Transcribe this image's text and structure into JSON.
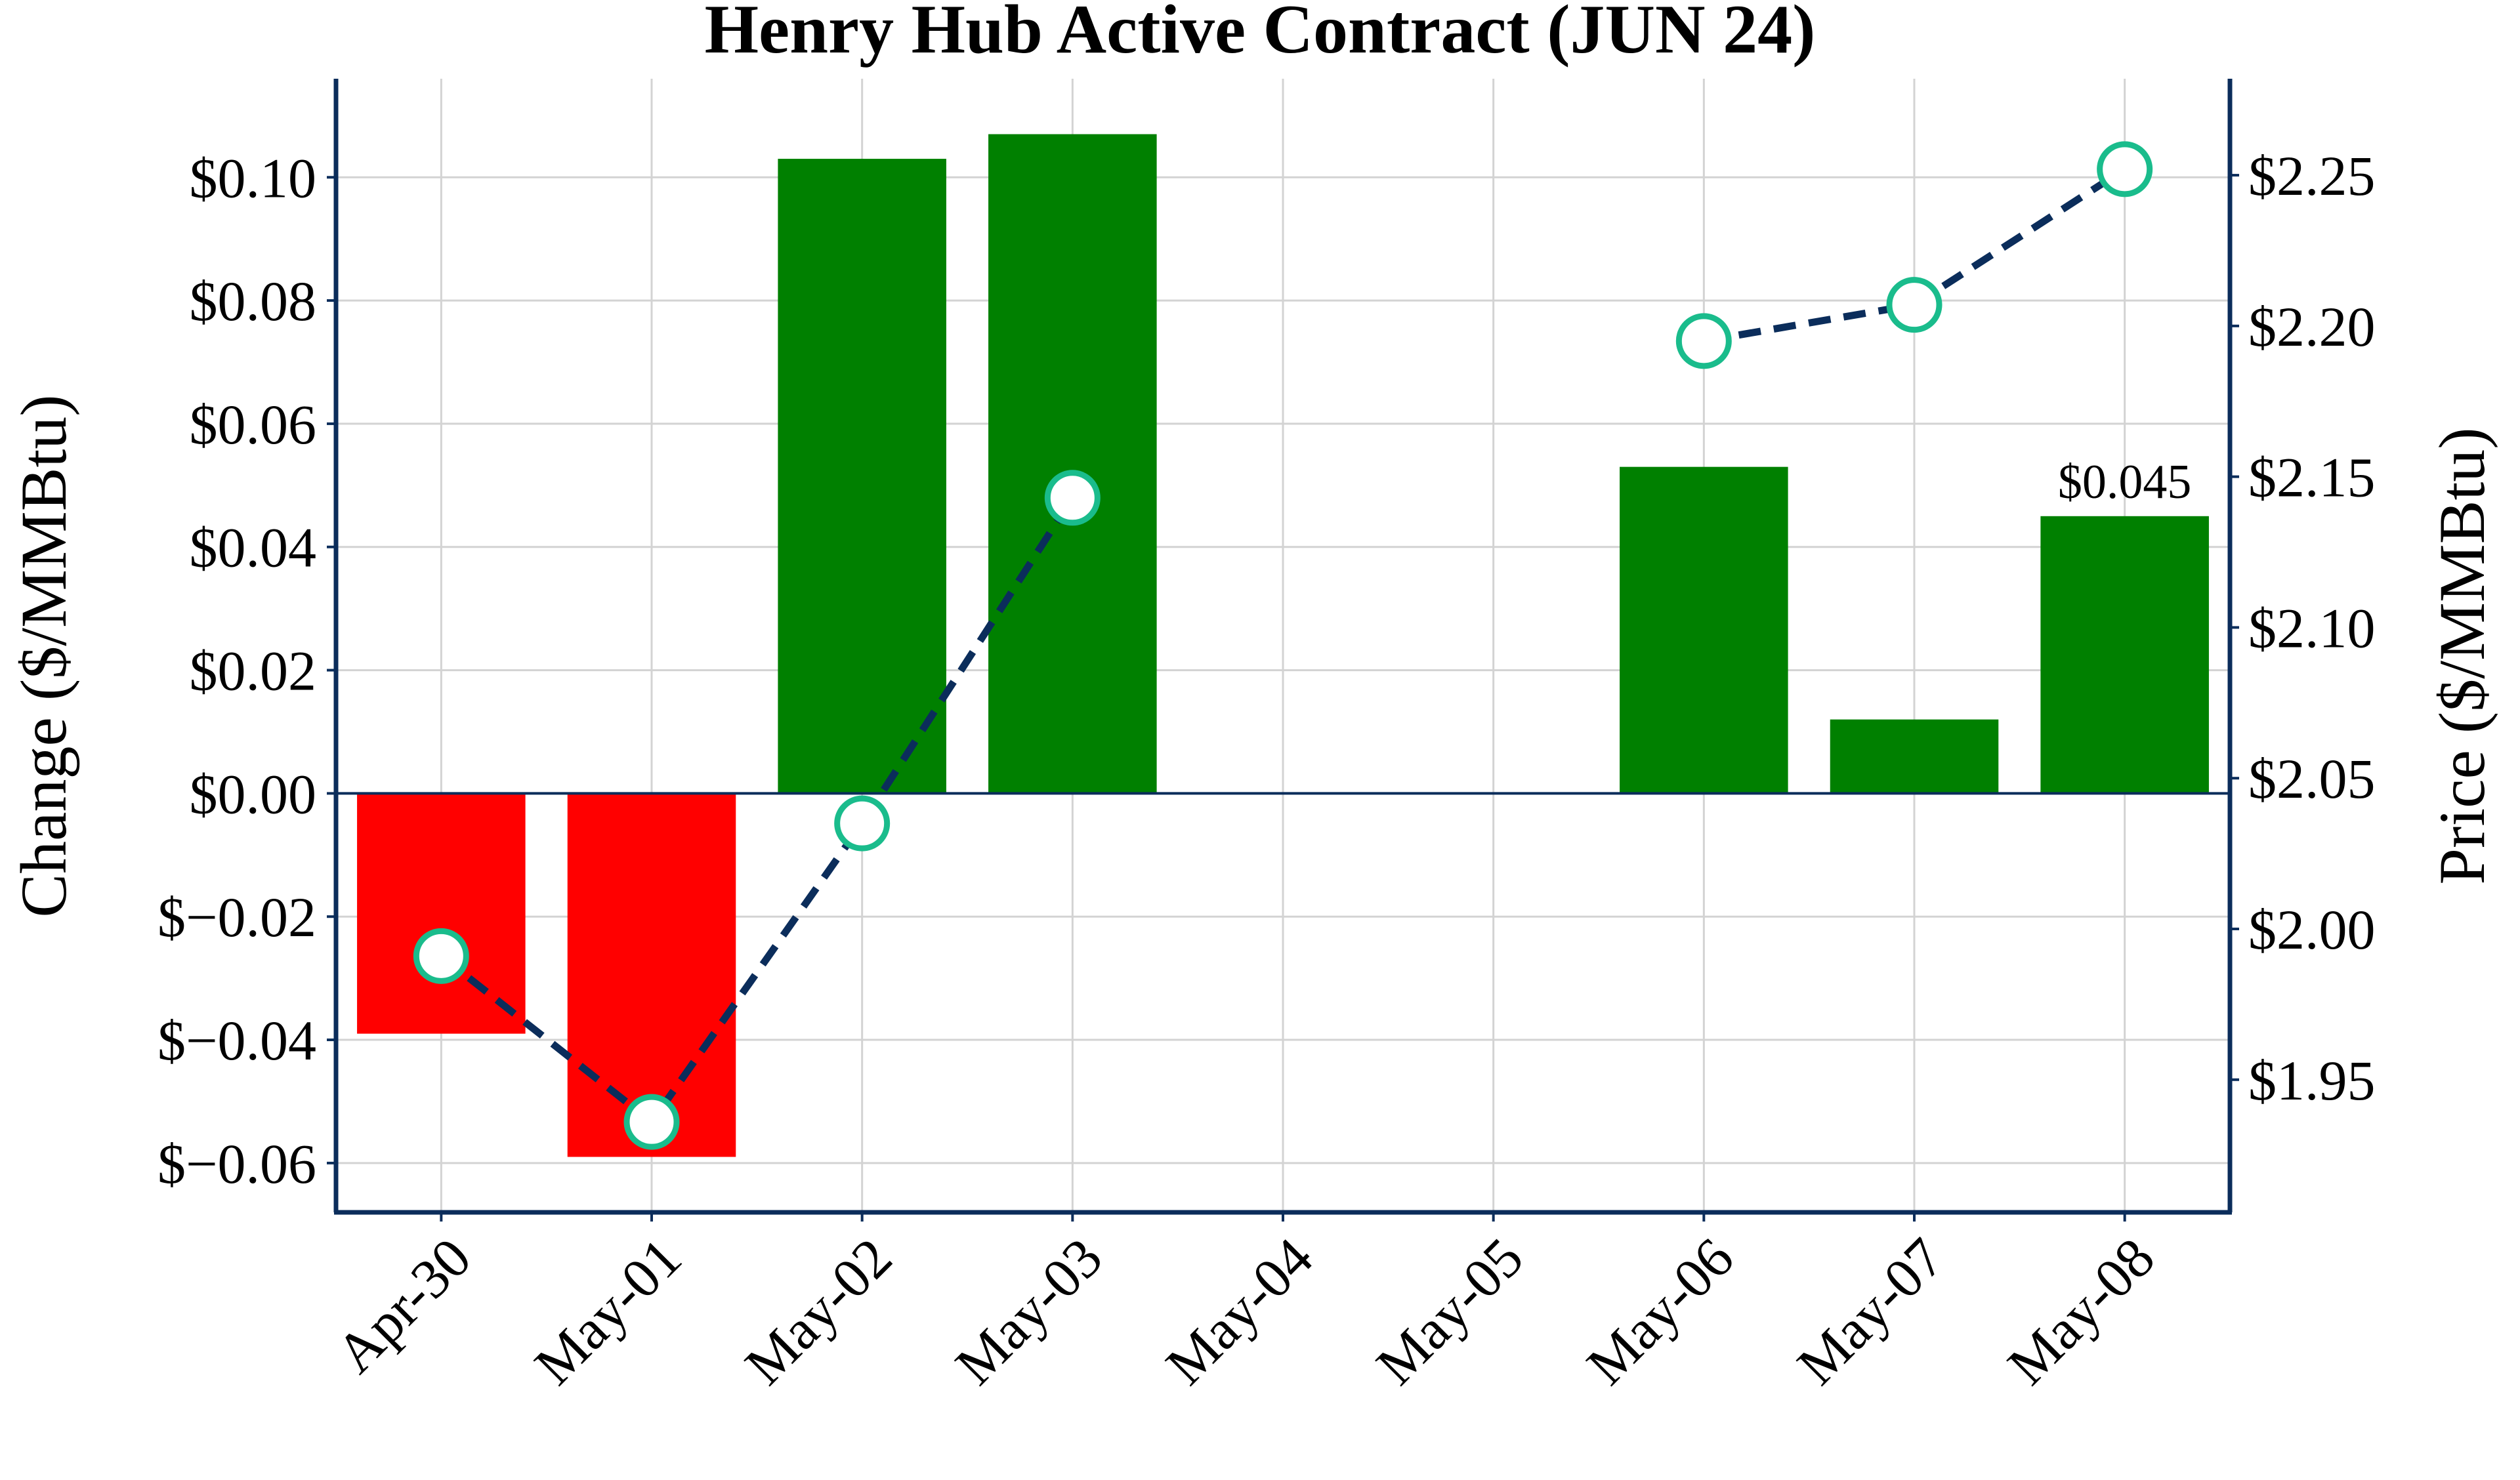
{
  "chart_data": {
    "type": "bar",
    "title": "Henry Hub Active Contract (JUN 24)",
    "categories": [
      "Apr-30",
      "May-01",
      "May-02",
      "May-03",
      "May-04",
      "May-05",
      "May-06",
      "May-07",
      "May-08"
    ],
    "left_axis": {
      "label": "Change ($/MMBtu)",
      "ylim": [
        -0.068,
        0.116
      ],
      "ticks": [
        -0.06,
        -0.04,
        -0.02,
        0.0,
        0.02,
        0.04,
        0.06,
        0.08,
        0.1
      ],
      "tick_labels": [
        "$−0.06",
        "$−0.04",
        "$−0.02",
        "$0.00",
        "$0.02",
        "$0.04",
        "$0.06",
        "$0.08",
        "$0.10"
      ]
    },
    "right_axis": {
      "label": "Price ($/MMBtu)",
      "ylim": [
        1.906,
        2.282
      ],
      "ticks": [
        1.95,
        2.0,
        2.05,
        2.1,
        2.15,
        2.2,
        2.25
      ],
      "tick_labels": [
        "$1.95",
        "$2.00",
        "$2.05",
        "$2.10",
        "$2.15",
        "$2.20",
        "$2.25"
      ]
    },
    "series": [
      {
        "name": "Change",
        "kind": "bar",
        "axis": "left",
        "values": [
          -0.039,
          -0.059,
          0.103,
          0.107,
          null,
          null,
          0.053,
          0.012,
          0.045
        ]
      },
      {
        "name": "Price",
        "kind": "line",
        "axis": "right",
        "style": "dashed",
        "values": [
          1.991,
          1.936,
          2.035,
          2.143,
          null,
          null,
          2.195,
          2.207,
          2.252
        ]
      }
    ],
    "annotations": [
      {
        "category": "May-08",
        "text": "$0.045"
      }
    ],
    "grid": true,
    "colors": {
      "positive_bar": "#008000",
      "negative_bar": "#ff0000",
      "line": "#0b2d5b",
      "marker_edge": "#1abc8c",
      "marker_fill": "#ffffff",
      "axis": "#0b2d5b",
      "grid": "#d3d3d3"
    }
  }
}
